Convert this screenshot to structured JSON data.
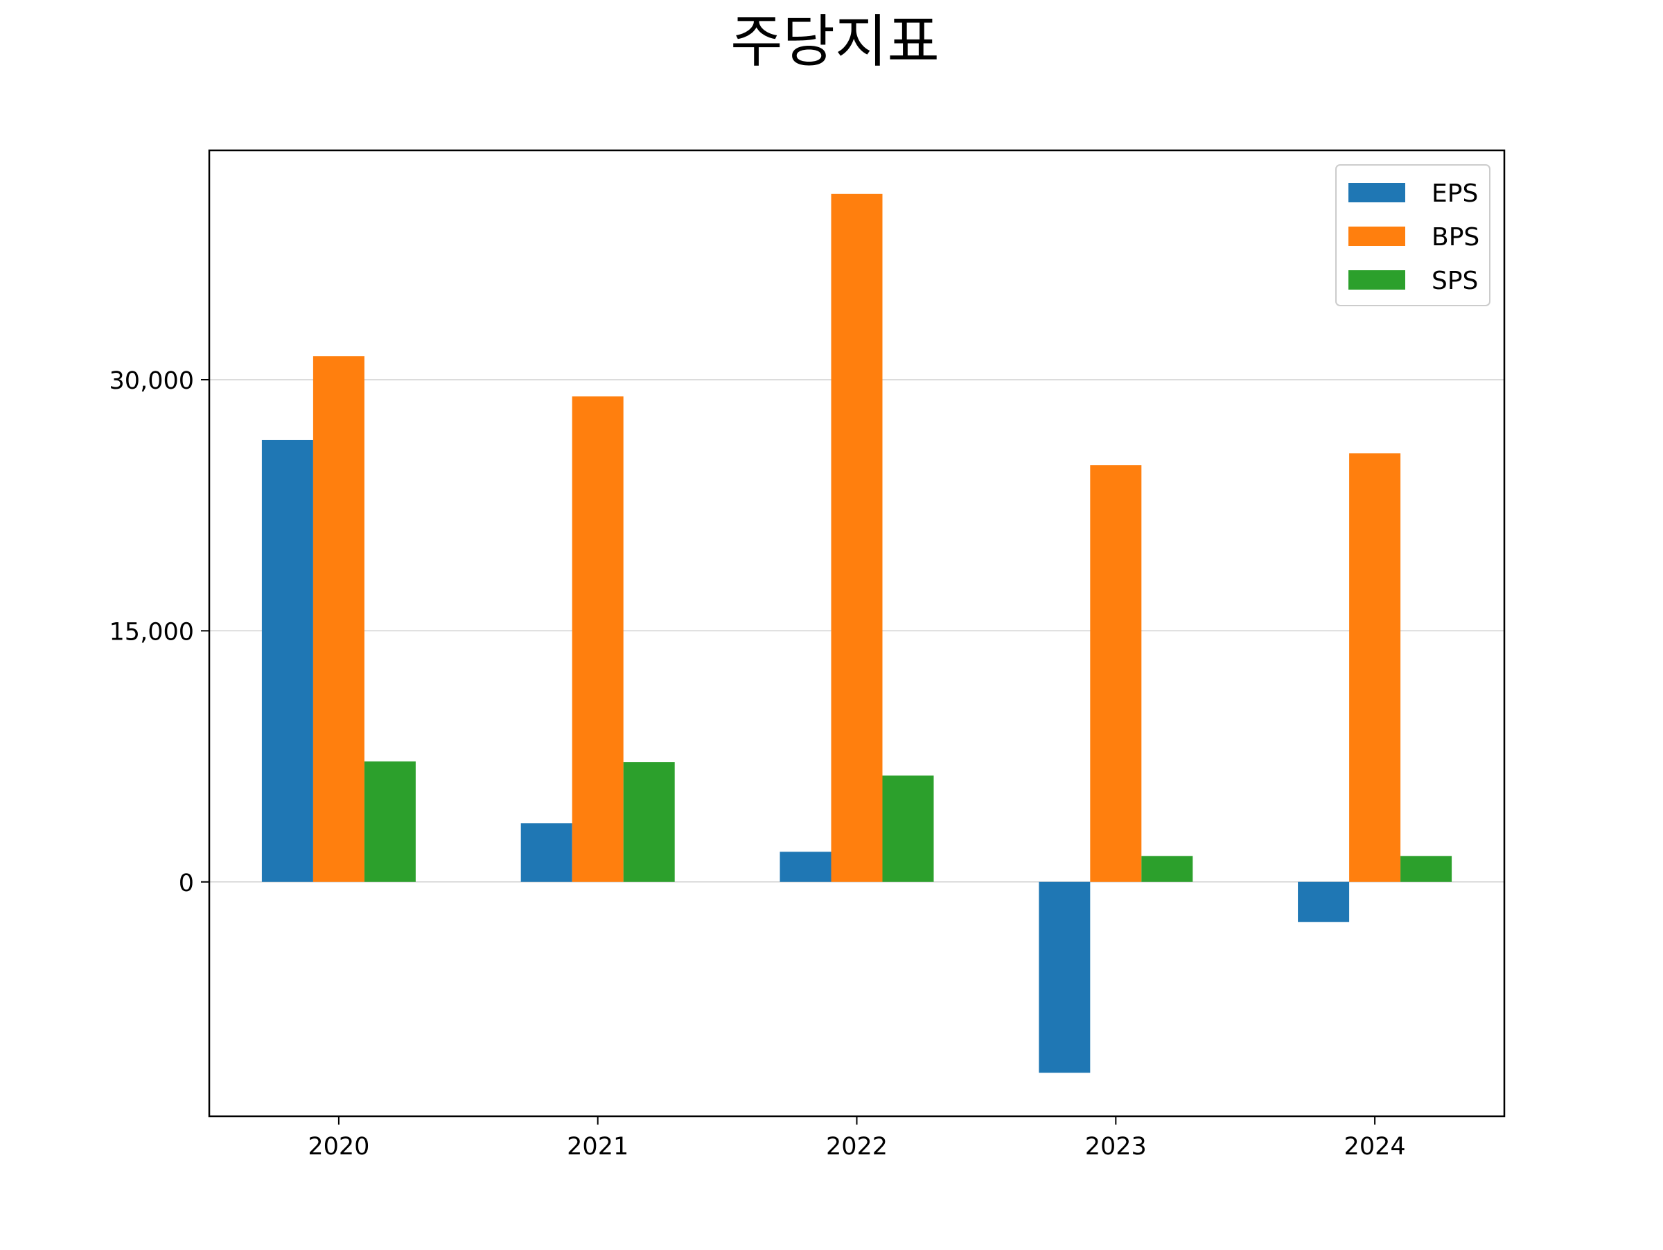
{
  "chart_data": {
    "type": "bar",
    "title": "주당지표",
    "xlabel": "",
    "ylabel": "",
    "categories": [
      "2020",
      "2021",
      "2022",
      "2023",
      "2024"
    ],
    "series": [
      {
        "name": "EPS",
        "color": "#1f77b4",
        "values": [
          26400,
          3500,
          1800,
          -11400,
          -2400
        ]
      },
      {
        "name": "BPS",
        "color": "#ff7f0e",
        "values": [
          31400,
          29000,
          41100,
          24900,
          25600
        ]
      },
      {
        "name": "SPS",
        "color": "#2ca02c",
        "values": [
          7200,
          7150,
          6350,
          1550,
          1550
        ]
      }
    ],
    "ylim": [
      -14000,
      43700
    ],
    "yticks": [
      0,
      15000,
      30000
    ],
    "ytick_labels": [
      "0",
      "15,000",
      "30,000"
    ],
    "grid": "horizontal",
    "legend_position": "top-right"
  }
}
